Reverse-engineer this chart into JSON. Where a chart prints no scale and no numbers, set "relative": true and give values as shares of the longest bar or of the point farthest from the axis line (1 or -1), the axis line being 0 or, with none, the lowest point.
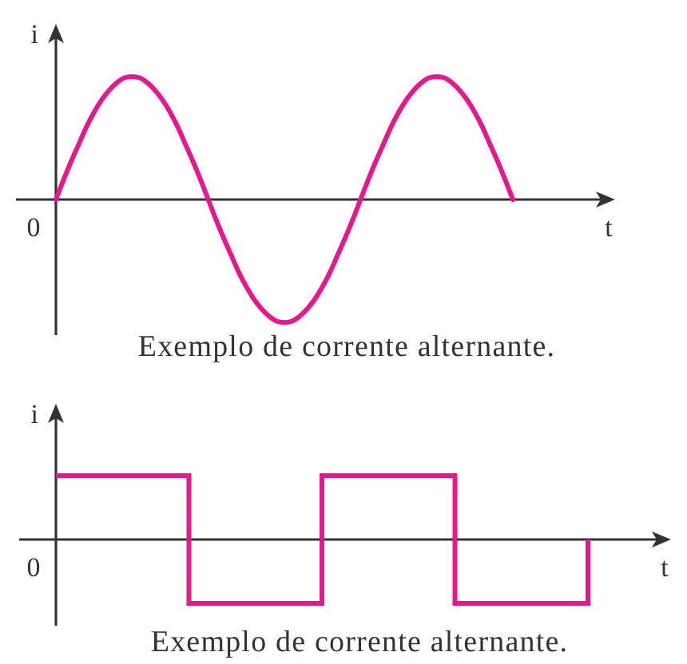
{
  "chart_data": [
    {
      "type": "line",
      "relative": true,
      "xlabel": "t",
      "ylabel": "i",
      "categories": [
        null,
        null,
        null,
        null,
        null,
        null,
        null,
        null,
        null,
        null,
        null,
        null,
        null,
        null,
        null,
        null,
        null,
        null,
        null,
        null,
        null,
        null,
        null,
        null,
        null,
        null,
        null,
        null,
        null,
        null,
        null,
        null,
        null,
        null,
        null,
        null,
        null,
        null,
        null,
        null,
        null,
        null,
        null,
        null,
        null,
        null,
        null,
        null,
        null,
        null,
        null,
        null,
        null,
        null,
        null,
        null,
        null,
        null,
        null,
        null,
        null
      ],
      "values": [
        0,
        0.16,
        0.31,
        0.45,
        0.59,
        0.71,
        0.81,
        0.89,
        0.95,
        0.99,
        1,
        0.99,
        0.95,
        0.89,
        0.81,
        0.71,
        0.59,
        0.45,
        0.31,
        0.16,
        0,
        -0.16,
        -0.31,
        -0.45,
        -0.59,
        -0.71,
        -0.81,
        -0.89,
        -0.95,
        -0.99,
        -1,
        -0.99,
        -0.95,
        -0.89,
        -0.81,
        -0.71,
        -0.59,
        -0.45,
        -0.31,
        -0.16,
        0,
        0.16,
        0.31,
        0.45,
        0.59,
        0.71,
        0.81,
        0.89,
        0.95,
        0.99,
        1,
        0.99,
        0.95,
        0.89,
        0.81,
        0.71,
        0.59,
        0.45,
        0.31,
        0.16,
        0
      ],
      "color": "#e5198b",
      "annotations": [
        "0",
        "Exemplo de corrente alternante."
      ]
    },
    {
      "type": "step",
      "relative": true,
      "xlabel": "t",
      "ylabel": "i",
      "categories": [
        null,
        null,
        null,
        null,
        null
      ],
      "values": [
        1,
        -1,
        1,
        -1,
        0
      ],
      "color": "#e5198b",
      "annotations": [
        "0",
        "Exemplo de corrente alternante."
      ]
    }
  ]
}
